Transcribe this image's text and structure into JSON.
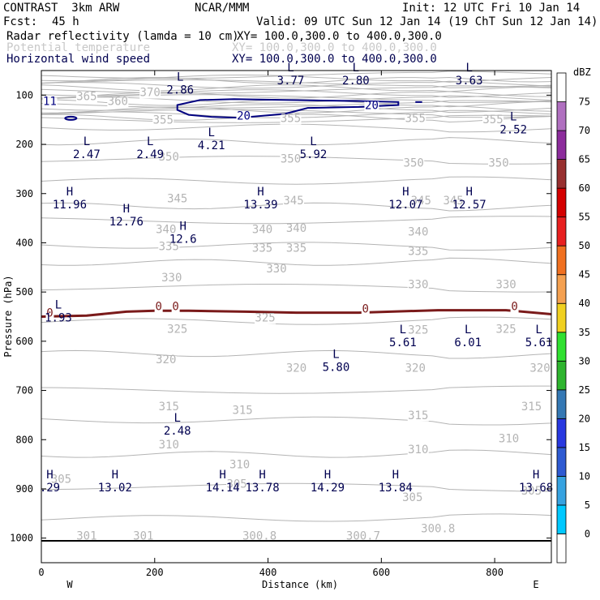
{
  "header": {
    "model": "CONTRAST  3km ARW",
    "org": "NCAR/MMM",
    "init": "Init: 12 UTC Fri 10 Jan 14",
    "fcst_label": "Fcst:",
    "fcst_value": "45 h",
    "valid": "Valid: 09 UTC Sun 12 Jan 14 (19 ChT Sun 12 Jan 14)",
    "fields": [
      {
        "name": "Radar reflectivity (lamda = 10 cm)",
        "xy": "XY= 100.0,300.0 to 400.0,300.0"
      },
      {
        "name": "Potential temperature",
        "xy": "XY= 100.0,300.0 to 400.0,300.0"
      },
      {
        "name": "Horizontal wind speed",
        "xy": "XY= 100.0,300.0 to 400.0,300.0"
      }
    ]
  },
  "colors": {
    "theta": "#b4b4b4",
    "wind": "#000080",
    "zero_contour": "#7a1a1a",
    "text_dark": "#000050"
  },
  "chart_data": {
    "type": "cross-section",
    "xlabel": "Distance (km)",
    "ylabel": "Pressure (hPa)",
    "xlim": [
      0,
      900
    ],
    "ylim": [
      1050,
      50
    ],
    "x_ticks": [
      0,
      200,
      400,
      600,
      800
    ],
    "y_ticks": [
      100,
      200,
      300,
      400,
      500,
      600,
      700,
      800,
      900,
      1000
    ],
    "x_end_labels": {
      "left": "W",
      "right": "E"
    },
    "colorbar": {
      "unit": "dBZ",
      "levels": [
        0,
        5,
        10,
        15,
        20,
        25,
        30,
        35,
        40,
        45,
        50,
        55,
        60,
        65,
        70,
        75
      ],
      "colors": [
        "#ffffff",
        "#00c8ff",
        "#36a2e0",
        "#2e5ad2",
        "#2838e0",
        "#3478b4",
        "#2eb42e",
        "#30e030",
        "#f0d020",
        "#f4a050",
        "#f07020",
        "#e82020",
        "#d40000",
        "#983030",
        "#8c2c9c",
        "#b070c0",
        "#ffffff"
      ]
    },
    "theta_labels": [
      {
        "t": "365",
        "x": 80,
        "p": 110
      },
      {
        "t": "360",
        "x": 135,
        "p": 120
      },
      {
        "t": "370",
        "x": 192,
        "p": 102
      },
      {
        "t": "355",
        "x": 215,
        "p": 158
      },
      {
        "t": "355",
        "x": 440,
        "p": 155
      },
      {
        "t": "355",
        "x": 660,
        "p": 155
      },
      {
        "t": "355",
        "x": 797,
        "p": 157
      },
      {
        "t": "350",
        "x": 225,
        "p": 233
      },
      {
        "t": "350",
        "x": 440,
        "p": 237
      },
      {
        "t": "350",
        "x": 657,
        "p": 245
      },
      {
        "t": "350",
        "x": 807,
        "p": 245
      },
      {
        "t": "345",
        "x": 240,
        "p": 318
      },
      {
        "t": "345",
        "x": 445,
        "p": 322
      },
      {
        "t": "345",
        "x": 670,
        "p": 322
      },
      {
        "t": "345",
        "x": 727,
        "p": 322
      },
      {
        "t": "340",
        "x": 220,
        "p": 380
      },
      {
        "t": "340",
        "x": 390,
        "p": 380
      },
      {
        "t": "340",
        "x": 450,
        "p": 378
      },
      {
        "t": "340",
        "x": 665,
        "p": 385
      },
      {
        "t": "335",
        "x": 225,
        "p": 415
      },
      {
        "t": "335",
        "x": 390,
        "p": 418
      },
      {
        "t": "335",
        "x": 450,
        "p": 418
      },
      {
        "t": "335",
        "x": 665,
        "p": 425
      },
      {
        "t": "330",
        "x": 230,
        "p": 478
      },
      {
        "t": "330",
        "x": 415,
        "p": 460
      },
      {
        "t": "330",
        "x": 665,
        "p": 492
      },
      {
        "t": "330",
        "x": 820,
        "p": 492
      },
      {
        "t": "325",
        "x": 240,
        "p": 583
      },
      {
        "t": "325",
        "x": 395,
        "p": 560
      },
      {
        "t": "325",
        "x": 665,
        "p": 585
      },
      {
        "t": "325",
        "x": 820,
        "p": 583
      },
      {
        "t": "320",
        "x": 220,
        "p": 645
      },
      {
        "t": "320",
        "x": 450,
        "p": 662
      },
      {
        "t": "320",
        "x": 660,
        "p": 662
      },
      {
        "t": "320",
        "x": 880,
        "p": 662
      },
      {
        "t": "315",
        "x": 225,
        "p": 740
      },
      {
        "t": "315",
        "x": 355,
        "p": 748
      },
      {
        "t": "315",
        "x": 665,
        "p": 758
      },
      {
        "t": "315",
        "x": 865,
        "p": 740
      },
      {
        "t": "310",
        "x": 225,
        "p": 818
      },
      {
        "t": "310",
        "x": 350,
        "p": 858
      },
      {
        "t": "310",
        "x": 665,
        "p": 828
      },
      {
        "t": "310",
        "x": 825,
        "p": 805
      },
      {
        "t": "305",
        "x": 35,
        "p": 888
      },
      {
        "t": "305",
        "x": 345,
        "p": 898
      },
      {
        "t": "305",
        "x": 655,
        "p": 925
      },
      {
        "t": "305",
        "x": 865,
        "p": 912
      },
      {
        "t": "301",
        "x": 80,
        "p": 1003
      },
      {
        "t": "301",
        "x": 180,
        "p": 1003
      },
      {
        "t": "300.8",
        "x": 385,
        "p": 1003
      },
      {
        "t": "300.7",
        "x": 568,
        "p": 1003
      },
      {
        "t": "300.8",
        "x": 700,
        "p": 988
      }
    ],
    "wind_extrema": [
      {
        "type": "L",
        "value": "2.86",
        "x": 245,
        "p": 97,
        "dark": true
      },
      {
        "type": "L",
        "value": "3.77",
        "x": 440,
        "p": 78,
        "dark": true
      },
      {
        "type": "L",
        "value": "2.80",
        "x": 555,
        "p": 78,
        "dark": true
      },
      {
        "type": "L",
        "value": "3.63",
        "x": 755,
        "p": 78,
        "dark": true
      },
      {
        "type": "L",
        "value": "2.47",
        "x": 80,
        "p": 228,
        "dark": true
      },
      {
        "type": "L",
        "value": "2.49",
        "x": 192,
        "p": 228,
        "dark": true
      },
      {
        "type": "L",
        "value": "4.21",
        "x": 300,
        "p": 210,
        "dark": true
      },
      {
        "type": "L",
        "value": "5.92",
        "x": 480,
        "p": 228,
        "dark": true
      },
      {
        "type": "L",
        "value": "2.52",
        "x": 833,
        "p": 178,
        "dark": true
      },
      {
        "type": "H",
        "value": "11.96",
        "x": 50,
        "p": 330,
        "dark": true
      },
      {
        "type": "H",
        "value": "12.76",
        "x": 150,
        "p": 365,
        "dark": true
      },
      {
        "type": "H",
        "value": "13.39",
        "x": 387,
        "p": 330,
        "dark": true
      },
      {
        "type": "H",
        "value": "12.6",
        "x": 250,
        "p": 400,
        "dark": true
      },
      {
        "type": "H",
        "value": "12.07",
        "x": 643,
        "p": 330,
        "dark": true
      },
      {
        "type": "H",
        "value": "12.57",
        "x": 755,
        "p": 330,
        "dark": true
      },
      {
        "type": "L",
        "value": "1.93",
        "x": 30,
        "p": 560,
        "dark": true
      },
      {
        "type": "L",
        "value": "5.61",
        "x": 638,
        "p": 610,
        "dark": true
      },
      {
        "type": "L",
        "value": "6.01",
        "x": 753,
        "p": 610,
        "dark": true
      },
      {
        "type": "L",
        "value": "5.61",
        "x": 878,
        "p": 610,
        "dark": true
      },
      {
        "type": "L",
        "value": "5.80",
        "x": 520,
        "p": 660,
        "dark": true
      },
      {
        "type": "L",
        "value": "2.48",
        "x": 240,
        "p": 790,
        "dark": true
      },
      {
        "type": "H",
        "value": ".29",
        "x": 15,
        "p": 905,
        "dark": true
      },
      {
        "type": "H",
        "value": "13.02",
        "x": 130,
        "p": 905,
        "dark": true
      },
      {
        "type": "H",
        "value": "14.14",
        "x": 320,
        "p": 905,
        "dark": true
      },
      {
        "type": "H",
        "value": "13.78",
        "x": 390,
        "p": 905,
        "dark": true
      },
      {
        "type": "H",
        "value": "14.29",
        "x": 505,
        "p": 905,
        "dark": true
      },
      {
        "type": "H",
        "value": "13.84",
        "x": 625,
        "p": 905,
        "dark": true
      },
      {
        "type": "H",
        "value": "13.68",
        "x": 873,
        "p": 905,
        "dark": true
      }
    ],
    "wind_labels": [
      {
        "t": "11",
        "x": 15,
        "p": 120
      },
      {
        "t": "20",
        "x": 357,
        "p": 150
      },
      {
        "t": "20",
        "x": 583,
        "p": 128
      }
    ],
    "zero_labels": [
      {
        "t": "0",
        "x": 15,
        "p": 550
      },
      {
        "t": "0",
        "x": 207,
        "p": 537
      },
      {
        "t": "0",
        "x": 237,
        "p": 537
      },
      {
        "t": "0",
        "x": 572,
        "p": 542
      },
      {
        "t": "0",
        "x": 835,
        "p": 537
      }
    ]
  }
}
